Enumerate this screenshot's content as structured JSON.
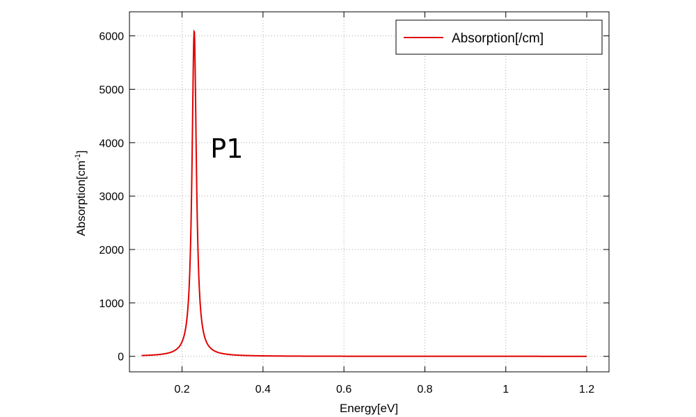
{
  "chart_data": {
    "type": "line",
    "xlabel": "Energy[eV]",
    "ylabel_base": "Absorption[cm",
    "ylabel_sup": "-1",
    "ylabel_close": "]",
    "xlim": [
      0.07,
      1.255
    ],
    "ylim": [
      -290,
      6450
    ],
    "xticks": [
      0.2,
      0.4,
      0.6,
      0.8,
      1.0,
      1.2
    ],
    "xtick_labels": [
      "0.2",
      "0.4",
      "0.6",
      "0.8",
      "1",
      "1.2"
    ],
    "yticks": [
      0,
      1000,
      2000,
      3000,
      4000,
      5000,
      6000
    ],
    "ytick_labels": [
      "0",
      "1000",
      "2000",
      "3000",
      "4000",
      "5000",
      "6000"
    ],
    "grid": true,
    "legend_position": "top-right",
    "annotation": {
      "text": "P1",
      "x": 0.27,
      "y": 3900
    },
    "series": [
      {
        "name": "Absorption[/cm]",
        "color": "#e00000",
        "peak": {
          "x": 0.23,
          "y": 6100
        },
        "x": [
          0.1,
          0.14,
          0.17,
          0.19,
          0.2,
          0.21,
          0.215,
          0.22,
          0.223,
          0.226,
          0.228,
          0.23,
          0.232,
          0.234,
          0.237,
          0.24,
          0.245,
          0.25,
          0.26,
          0.28,
          0.3,
          0.35,
          0.4,
          0.5,
          0.6,
          0.8,
          1.0,
          1.2
        ],
        "values": [
          10,
          15,
          30,
          60,
          100,
          200,
          320,
          650,
          1300,
          2800,
          4500,
          6100,
          4500,
          2800,
          1400,
          750,
          380,
          230,
          120,
          65,
          40,
          20,
          12,
          8,
          5,
          3,
          2,
          1
        ]
      }
    ]
  }
}
